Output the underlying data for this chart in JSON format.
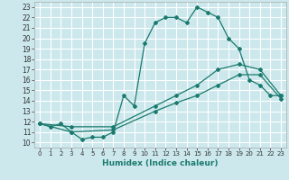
{
  "title": "",
  "xlabel": "Humidex (Indice chaleur)",
  "xlim": [
    -0.5,
    23.5
  ],
  "ylim": [
    9.5,
    23.5
  ],
  "xticks": [
    0,
    1,
    2,
    3,
    4,
    5,
    6,
    7,
    8,
    9,
    10,
    11,
    12,
    13,
    14,
    15,
    16,
    17,
    18,
    19,
    20,
    21,
    22,
    23
  ],
  "yticks": [
    10,
    11,
    12,
    13,
    14,
    15,
    16,
    17,
    18,
    19,
    20,
    21,
    22,
    23
  ],
  "bg_color": "#cce8ec",
  "grid_color": "#ffffff",
  "line_color": "#1a7a6e",
  "curve1_x": [
    0,
    1,
    2,
    3,
    4,
    5,
    6,
    7,
    8,
    9,
    10,
    11,
    12,
    13,
    14,
    15,
    16,
    17,
    18,
    19,
    20,
    21,
    22,
    23
  ],
  "curve1_y": [
    11.8,
    11.5,
    11.8,
    11.0,
    10.3,
    10.5,
    10.5,
    11.0,
    14.5,
    13.5,
    19.5,
    21.5,
    22.0,
    22.0,
    21.5,
    23.0,
    22.5,
    22.0,
    20.0,
    19.0,
    16.0,
    15.5,
    14.5,
    14.5
  ],
  "curve2_x": [
    0,
    3,
    7,
    11,
    13,
    15,
    17,
    19,
    21,
    23
  ],
  "curve2_y": [
    11.8,
    11.5,
    11.5,
    13.5,
    14.5,
    15.5,
    17.0,
    17.5,
    17.0,
    14.5
  ],
  "curve3_x": [
    0,
    3,
    7,
    11,
    13,
    15,
    17,
    19,
    21,
    23
  ],
  "curve3_y": [
    11.8,
    11.0,
    11.2,
    13.0,
    13.8,
    14.5,
    15.5,
    16.5,
    16.5,
    14.2
  ]
}
